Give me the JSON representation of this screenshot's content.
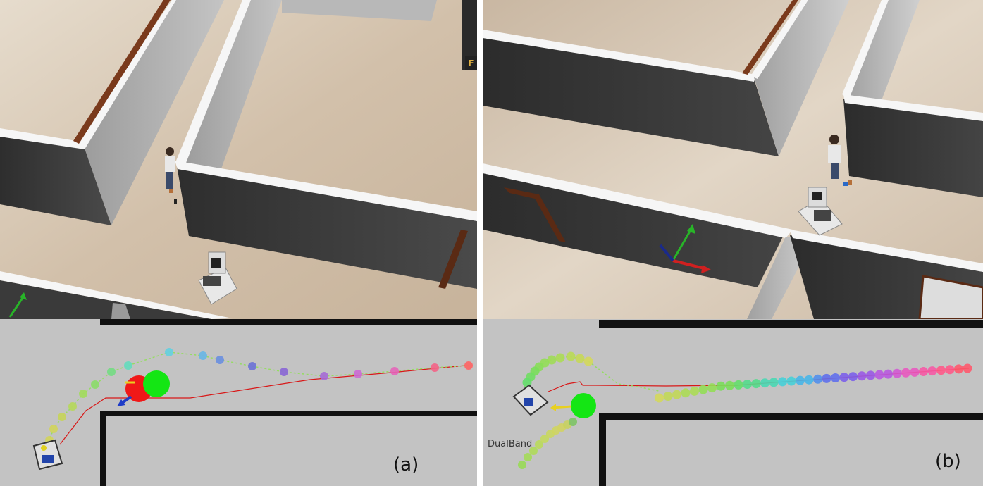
{
  "panel_a": {
    "caption": "(a)",
    "corner_tag": "F",
    "trail_colors": [
      "#ff6464",
      "#f36487",
      "#e466b9",
      "#cc6ad4",
      "#a66ad6",
      "#8a66d6",
      "#6c72d6",
      "#6a8fe0",
      "#68b6e6",
      "#64d0e0",
      "#64dcbe",
      "#74dc84",
      "#8cdc6a",
      "#a2dc5c",
      "#b6d85a",
      "#c6d45a",
      "#d2d45c"
    ]
  },
  "panel_b": {
    "caption": "(b)",
    "map_label": "DualBand",
    "trail_colors": [
      "#ff5a6e",
      "#ff5a8a",
      "#f65aa6",
      "#e85ac0",
      "#d25ad4",
      "#b85ae0",
      "#9a5ae6",
      "#7c60ea",
      "#6070ec",
      "#5290ec",
      "#48b6e8",
      "#46d0d8",
      "#4ad8b4",
      "#54dc8c",
      "#64de6c",
      "#7ade5a",
      "#94de56",
      "#acdc56",
      "#c2d858",
      "#d4d85c"
    ]
  },
  "colors": {
    "wall_dark": "#3a3a3a",
    "wall_white": "#f4f4f4",
    "floor": "#d8c8b4",
    "map_bg": "#c3c3c3",
    "path_red": "#d81818",
    "person_green": "#14e614",
    "person_red": "#f01818"
  }
}
